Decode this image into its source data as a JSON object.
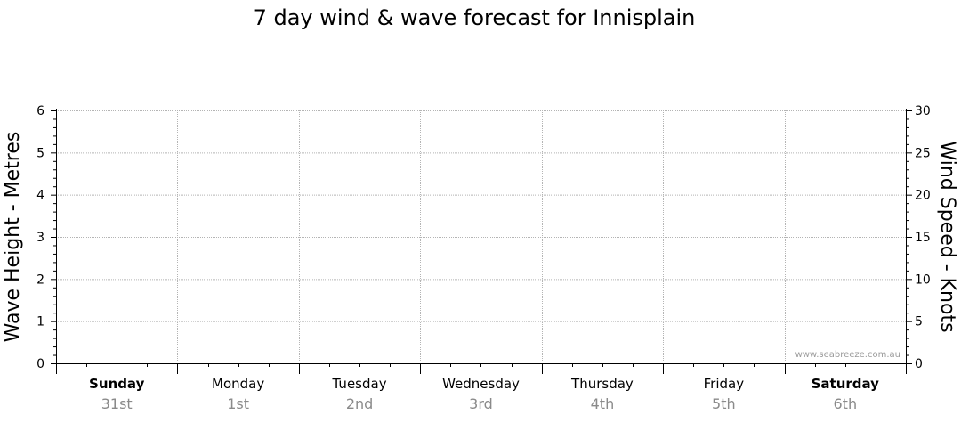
{
  "chart_data": {
    "type": "line",
    "title": "7 day wind & wave forecast for Innisplain",
    "ylabel_left": "Wave Height - Metres",
    "ylabel_right": "Wind Speed - Knots",
    "ylim_left": [
      0,
      6
    ],
    "ylim_right": [
      0,
      30
    ],
    "yticks_left": [
      "0",
      "1",
      "2",
      "3",
      "4",
      "5",
      "6"
    ],
    "yticks_right": [
      "0",
      "5",
      "10",
      "15",
      "20",
      "25",
      "30"
    ],
    "categories": [
      {
        "day": "Sunday",
        "date": "31st",
        "weekend": true
      },
      {
        "day": "Monday",
        "date": "1st",
        "weekend": false
      },
      {
        "day": "Tuesday",
        "date": "2nd",
        "weekend": false
      },
      {
        "day": "Wednesday",
        "date": "3rd",
        "weekend": false
      },
      {
        "day": "Thursday",
        "date": "4th",
        "weekend": false
      },
      {
        "day": "Friday",
        "date": "5th",
        "weekend": false
      },
      {
        "day": "Saturday",
        "date": "6th",
        "weekend": true
      }
    ],
    "series": [],
    "grid": true
  },
  "watermark": "www.seabreeze.com.au"
}
